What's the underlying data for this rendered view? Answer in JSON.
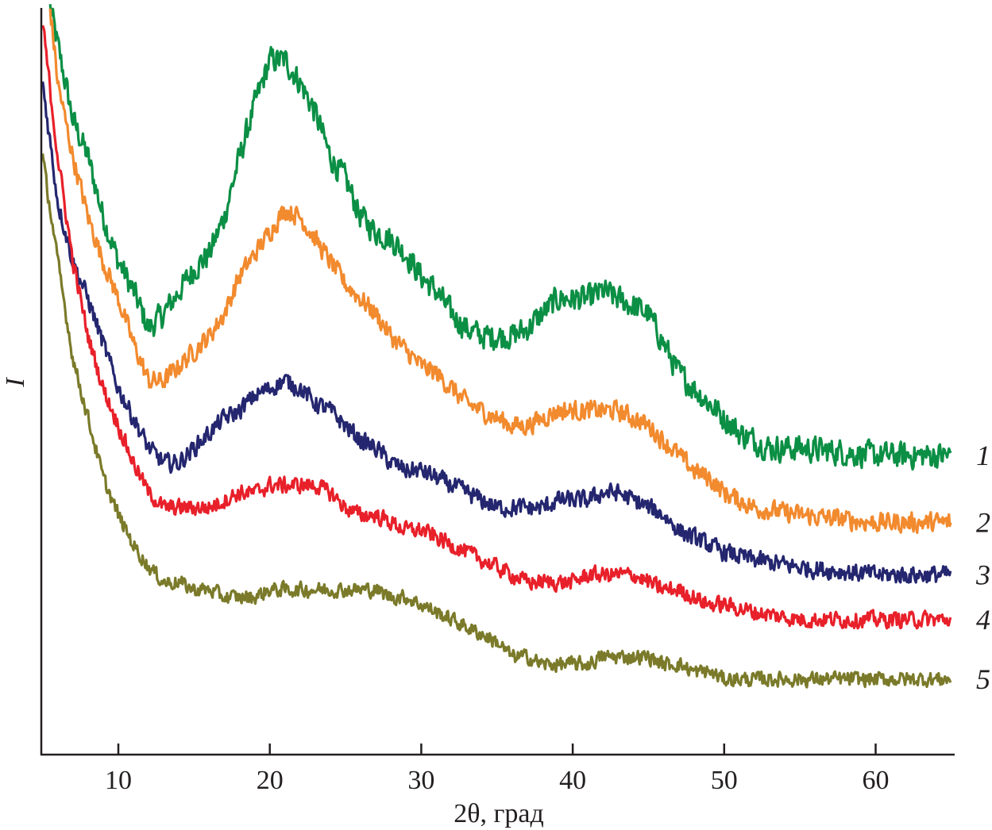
{
  "chart_data": {
    "type": "line",
    "title": "",
    "xlabel": "2θ, град",
    "ylabel": "I",
    "xlim": [
      5,
      65.3
    ],
    "ylim": [
      0,
      100
    ],
    "y_units": "arbitrary (no scale shown)",
    "grid": false,
    "legend": "curve numbers at right end of each line",
    "x_ticks": [
      10,
      20,
      30,
      40,
      50,
      60
    ],
    "x_tick_labels": [
      "10",
      "20",
      "30",
      "40",
      "50",
      "60"
    ],
    "series": [
      {
        "name": "1",
        "color": "#0b8f45",
        "noise": 1.6,
        "x": [
          5.5,
          6,
          7,
          8,
          9,
          10,
          11,
          12,
          13,
          14,
          15,
          16,
          17,
          18,
          19,
          20,
          21,
          22,
          23,
          24,
          25,
          26,
          27,
          28,
          29,
          30,
          31,
          32,
          33,
          34,
          35,
          36,
          37,
          38,
          39,
          40,
          41,
          42,
          43,
          44,
          45,
          46,
          47,
          48,
          49,
          50,
          51,
          52,
          53,
          55,
          60,
          65
        ],
        "y": [
          100,
          95,
          85,
          80,
          72,
          66,
          62,
          57,
          59,
          62,
          65,
          67,
          72,
          80,
          87,
          93,
          93,
          90,
          86,
          80,
          77,
          72,
          70,
          69,
          67,
          64,
          62,
          59,
          57,
          56,
          56,
          56,
          57,
          59,
          61,
          61,
          61,
          62,
          61,
          60,
          59,
          55,
          51,
          49,
          47,
          45,
          43,
          42,
          41,
          41,
          40,
          40
        ]
      },
      {
        "name": "2",
        "color": "#f28a2e",
        "noise": 1.2,
        "x": [
          5.5,
          6,
          7,
          8,
          9,
          10,
          11,
          12,
          13,
          14,
          15,
          16,
          17,
          18,
          19,
          20,
          21,
          22,
          23,
          24,
          25,
          26,
          27,
          28,
          29,
          30,
          31,
          32,
          33,
          34,
          35,
          36,
          37,
          38,
          39,
          40,
          41,
          42,
          43,
          44,
          45,
          46,
          47,
          48,
          49,
          50,
          52,
          55,
          60,
          65
        ],
        "y": [
          100,
          90,
          80,
          72,
          66,
          61,
          55,
          50,
          50,
          52,
          54,
          56,
          59,
          64,
          67,
          70,
          73,
          72,
          69,
          66,
          63,
          61,
          59,
          56,
          54,
          52,
          51,
          49,
          47,
          46,
          45,
          44,
          44,
          45,
          46,
          46,
          46,
          46,
          46,
          45,
          44,
          42,
          40,
          38,
          37,
          35,
          33,
          32,
          31,
          31
        ]
      },
      {
        "name": "3",
        "color": "#24266f",
        "noise": 1.1,
        "x": [
          5,
          6,
          7,
          8,
          9,
          10,
          11,
          12,
          13,
          14,
          15,
          16,
          17,
          18,
          19,
          20,
          21,
          22,
          23,
          24,
          25,
          26,
          27,
          28,
          29,
          30,
          31,
          32,
          33,
          34,
          35,
          36,
          37,
          38,
          39,
          40,
          41,
          42,
          43,
          44,
          45,
          46,
          47,
          48,
          49,
          50,
          52,
          55,
          60,
          65
        ],
        "y": [
          90,
          74,
          66,
          61,
          55,
          49,
          45,
          41,
          39,
          39,
          41,
          43,
          45,
          46,
          48,
          49,
          50,
          49,
          47,
          46,
          44,
          42,
          41,
          39,
          38,
          38,
          37,
          36,
          35,
          34,
          33,
          33,
          33,
          33,
          34,
          34,
          34,
          35,
          35,
          34,
          33,
          32,
          30,
          29,
          28,
          27,
          26,
          25,
          24,
          24
        ]
      },
      {
        "name": "4",
        "color": "#e8202a",
        "noise": 1.0,
        "x": [
          5,
          6,
          7,
          8,
          9,
          10,
          11,
          12,
          13,
          14,
          15,
          16,
          17,
          18,
          19,
          20,
          21,
          22,
          23,
          24,
          25,
          26,
          27,
          28,
          29,
          30,
          31,
          32,
          33,
          34,
          35,
          36,
          37,
          38,
          39,
          40,
          41,
          42,
          43,
          44,
          45,
          46,
          47,
          48,
          49,
          50,
          52,
          55,
          60,
          65
        ],
        "y": [
          98,
          80,
          66,
          56,
          49,
          44,
          39,
          35,
          33,
          33,
          33,
          33,
          34,
          35,
          35,
          36,
          36,
          36,
          36,
          35,
          33,
          32,
          32,
          31,
          30,
          30,
          29,
          28,
          27,
          26,
          25,
          24,
          23,
          23,
          23,
          23,
          24,
          24,
          24,
          24,
          23,
          22,
          22,
          21,
          20,
          20,
          19,
          18,
          18,
          18
        ]
      },
      {
        "name": "5",
        "color": "#7a7a2a",
        "noise": 0.9,
        "x": [
          5,
          6,
          7,
          8,
          9,
          10,
          11,
          12,
          13,
          14,
          15,
          16,
          17,
          18,
          19,
          20,
          21,
          22,
          23,
          24,
          25,
          26,
          27,
          28,
          29,
          30,
          31,
          32,
          33,
          34,
          35,
          36,
          37,
          38,
          39,
          40,
          41,
          42,
          43,
          44,
          45,
          46,
          47,
          48,
          49,
          50,
          52,
          55,
          60,
          65
        ],
        "y": [
          80,
          66,
          53,
          45,
          37,
          32,
          28,
          25,
          23,
          23,
          22,
          22,
          21,
          21,
          21,
          22,
          22,
          22,
          22,
          22,
          22,
          22,
          22,
          21,
          21,
          20,
          19,
          18,
          17,
          16,
          15,
          13,
          13,
          12,
          12,
          12,
          12,
          13,
          13,
          13,
          13,
          12,
          12,
          11,
          11,
          10,
          10,
          10,
          10,
          10
        ]
      }
    ]
  }
}
